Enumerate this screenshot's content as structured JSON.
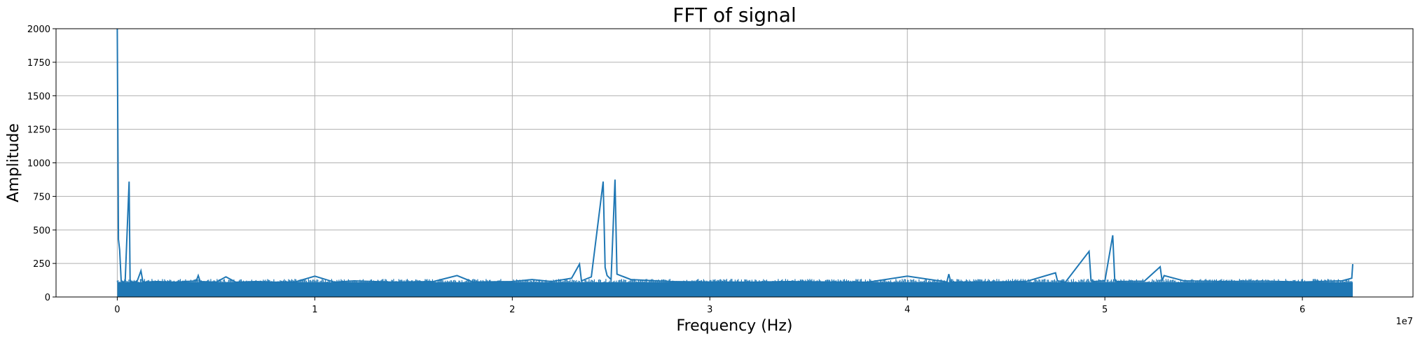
{
  "chart_data": {
    "type": "line",
    "title": "FFT of signal",
    "xlabel": "Frequency (Hz)",
    "ylabel": "Amplitude",
    "x_offset_label": "1e7",
    "xlim": [
      -3100000,
      65600000
    ],
    "ylim": [
      0,
      2000
    ],
    "xticks": [
      0,
      10000000,
      20000000,
      30000000,
      40000000,
      50000000,
      60000000
    ],
    "xtick_labels": [
      "0",
      "1",
      "2",
      "3",
      "4",
      "5",
      "6"
    ],
    "yticks": [
      0,
      250,
      500,
      750,
      1000,
      1250,
      1500,
      1750,
      2000
    ],
    "ytick_labels": [
      "0",
      "250",
      "500",
      "750",
      "1000",
      "1250",
      "1500",
      "1750",
      "2000"
    ],
    "grid": true,
    "line_color": "#1f77b4",
    "series": [
      {
        "x": [
          0,
          60000,
          120000,
          200000,
          300000,
          400000,
          600000,
          650000,
          700000,
          1000000,
          1200000,
          1300000,
          2000000,
          3000000,
          4000000,
          4100000,
          4200000,
          5000000,
          5500000,
          6000000,
          7000000,
          8000000,
          9000000,
          10000000,
          11000000,
          12000000,
          14000000,
          16000000,
          17200000,
          18000000,
          20000000,
          21000000,
          22000000,
          23000000,
          23400000,
          23500000,
          24000000,
          24600000,
          24700000,
          24800000,
          25000000,
          25200000,
          25300000,
          26000000,
          28000000,
          30000000,
          32000000,
          34000000,
          36000000,
          38000000,
          40000000,
          42000000,
          42100000,
          42200000,
          44000000,
          46000000,
          47500000,
          47600000,
          48000000,
          49200000,
          49300000,
          49400000,
          50000000,
          50400000,
          50500000,
          50600000,
          52000000,
          52800000,
          52900000,
          53000000,
          54000000,
          56000000,
          58000000,
          60000000,
          62000000,
          62500000,
          62550000
        ],
        "y": [
          2000,
          430,
          350,
          120,
          110,
          120,
          860,
          130,
          110,
          115,
          195,
          110,
          115,
          110,
          120,
          160,
          115,
          110,
          150,
          110,
          115,
          110,
          112,
          155,
          110,
          120,
          110,
          115,
          160,
          112,
          115,
          130,
          115,
          140,
          245,
          120,
          150,
          860,
          220,
          160,
          130,
          875,
          170,
          130,
          115,
          112,
          110,
          115,
          112,
          110,
          155,
          112,
          170,
          110,
          112,
          115,
          180,
          120,
          110,
          340,
          120,
          115,
          120,
          460,
          120,
          115,
          118,
          225,
          120,
          160,
          120,
          115,
          118,
          112,
          120,
          140,
          245
        ]
      }
    ]
  }
}
